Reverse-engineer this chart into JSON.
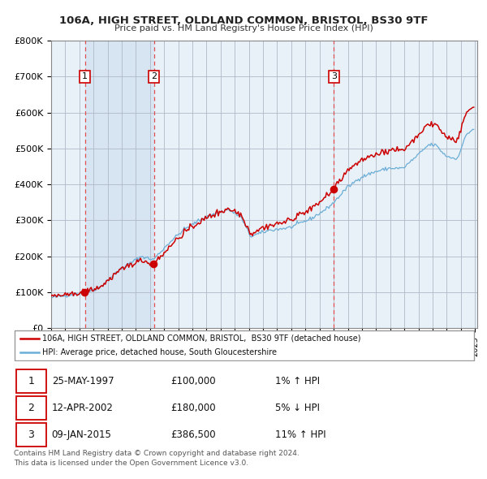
{
  "title1": "106A, HIGH STREET, OLDLAND COMMON, BRISTOL, BS30 9TF",
  "title2": "Price paid vs. HM Land Registry's House Price Index (HPI)",
  "legend1": "106A, HIGH STREET, OLDLAND COMMON, BRISTOL,  BS30 9TF (detached house)",
  "legend2": "HPI: Average price, detached house, South Gloucestershire",
  "sale_prices": [
    100000,
    180000,
    386500
  ],
  "table_rows": [
    [
      "1",
      "25-MAY-1997",
      "£100,000",
      "1% ↑ HPI"
    ],
    [
      "2",
      "12-APR-2002",
      "£180,000",
      "5% ↓ HPI"
    ],
    [
      "3",
      "09-JAN-2015",
      "£386,500",
      "11% ↑ HPI"
    ]
  ],
  "footer1": "Contains HM Land Registry data © Crown copyright and database right 2024.",
  "footer2": "This data is licensed under the Open Government Licence v3.0.",
  "hpi_color": "#6baed6",
  "price_color": "#cc0000",
  "vline_color": "#e05050",
  "plot_bg": "#e8f0f8",
  "ylim": [
    0,
    800000
  ],
  "yticks": [
    0,
    100000,
    200000,
    300000,
    400000,
    500000,
    600000,
    700000,
    800000
  ],
  "ytick_labels": [
    "£0",
    "£100K",
    "£200K",
    "£300K",
    "£400K",
    "£500K",
    "£600K",
    "£700K",
    "£800K"
  ]
}
